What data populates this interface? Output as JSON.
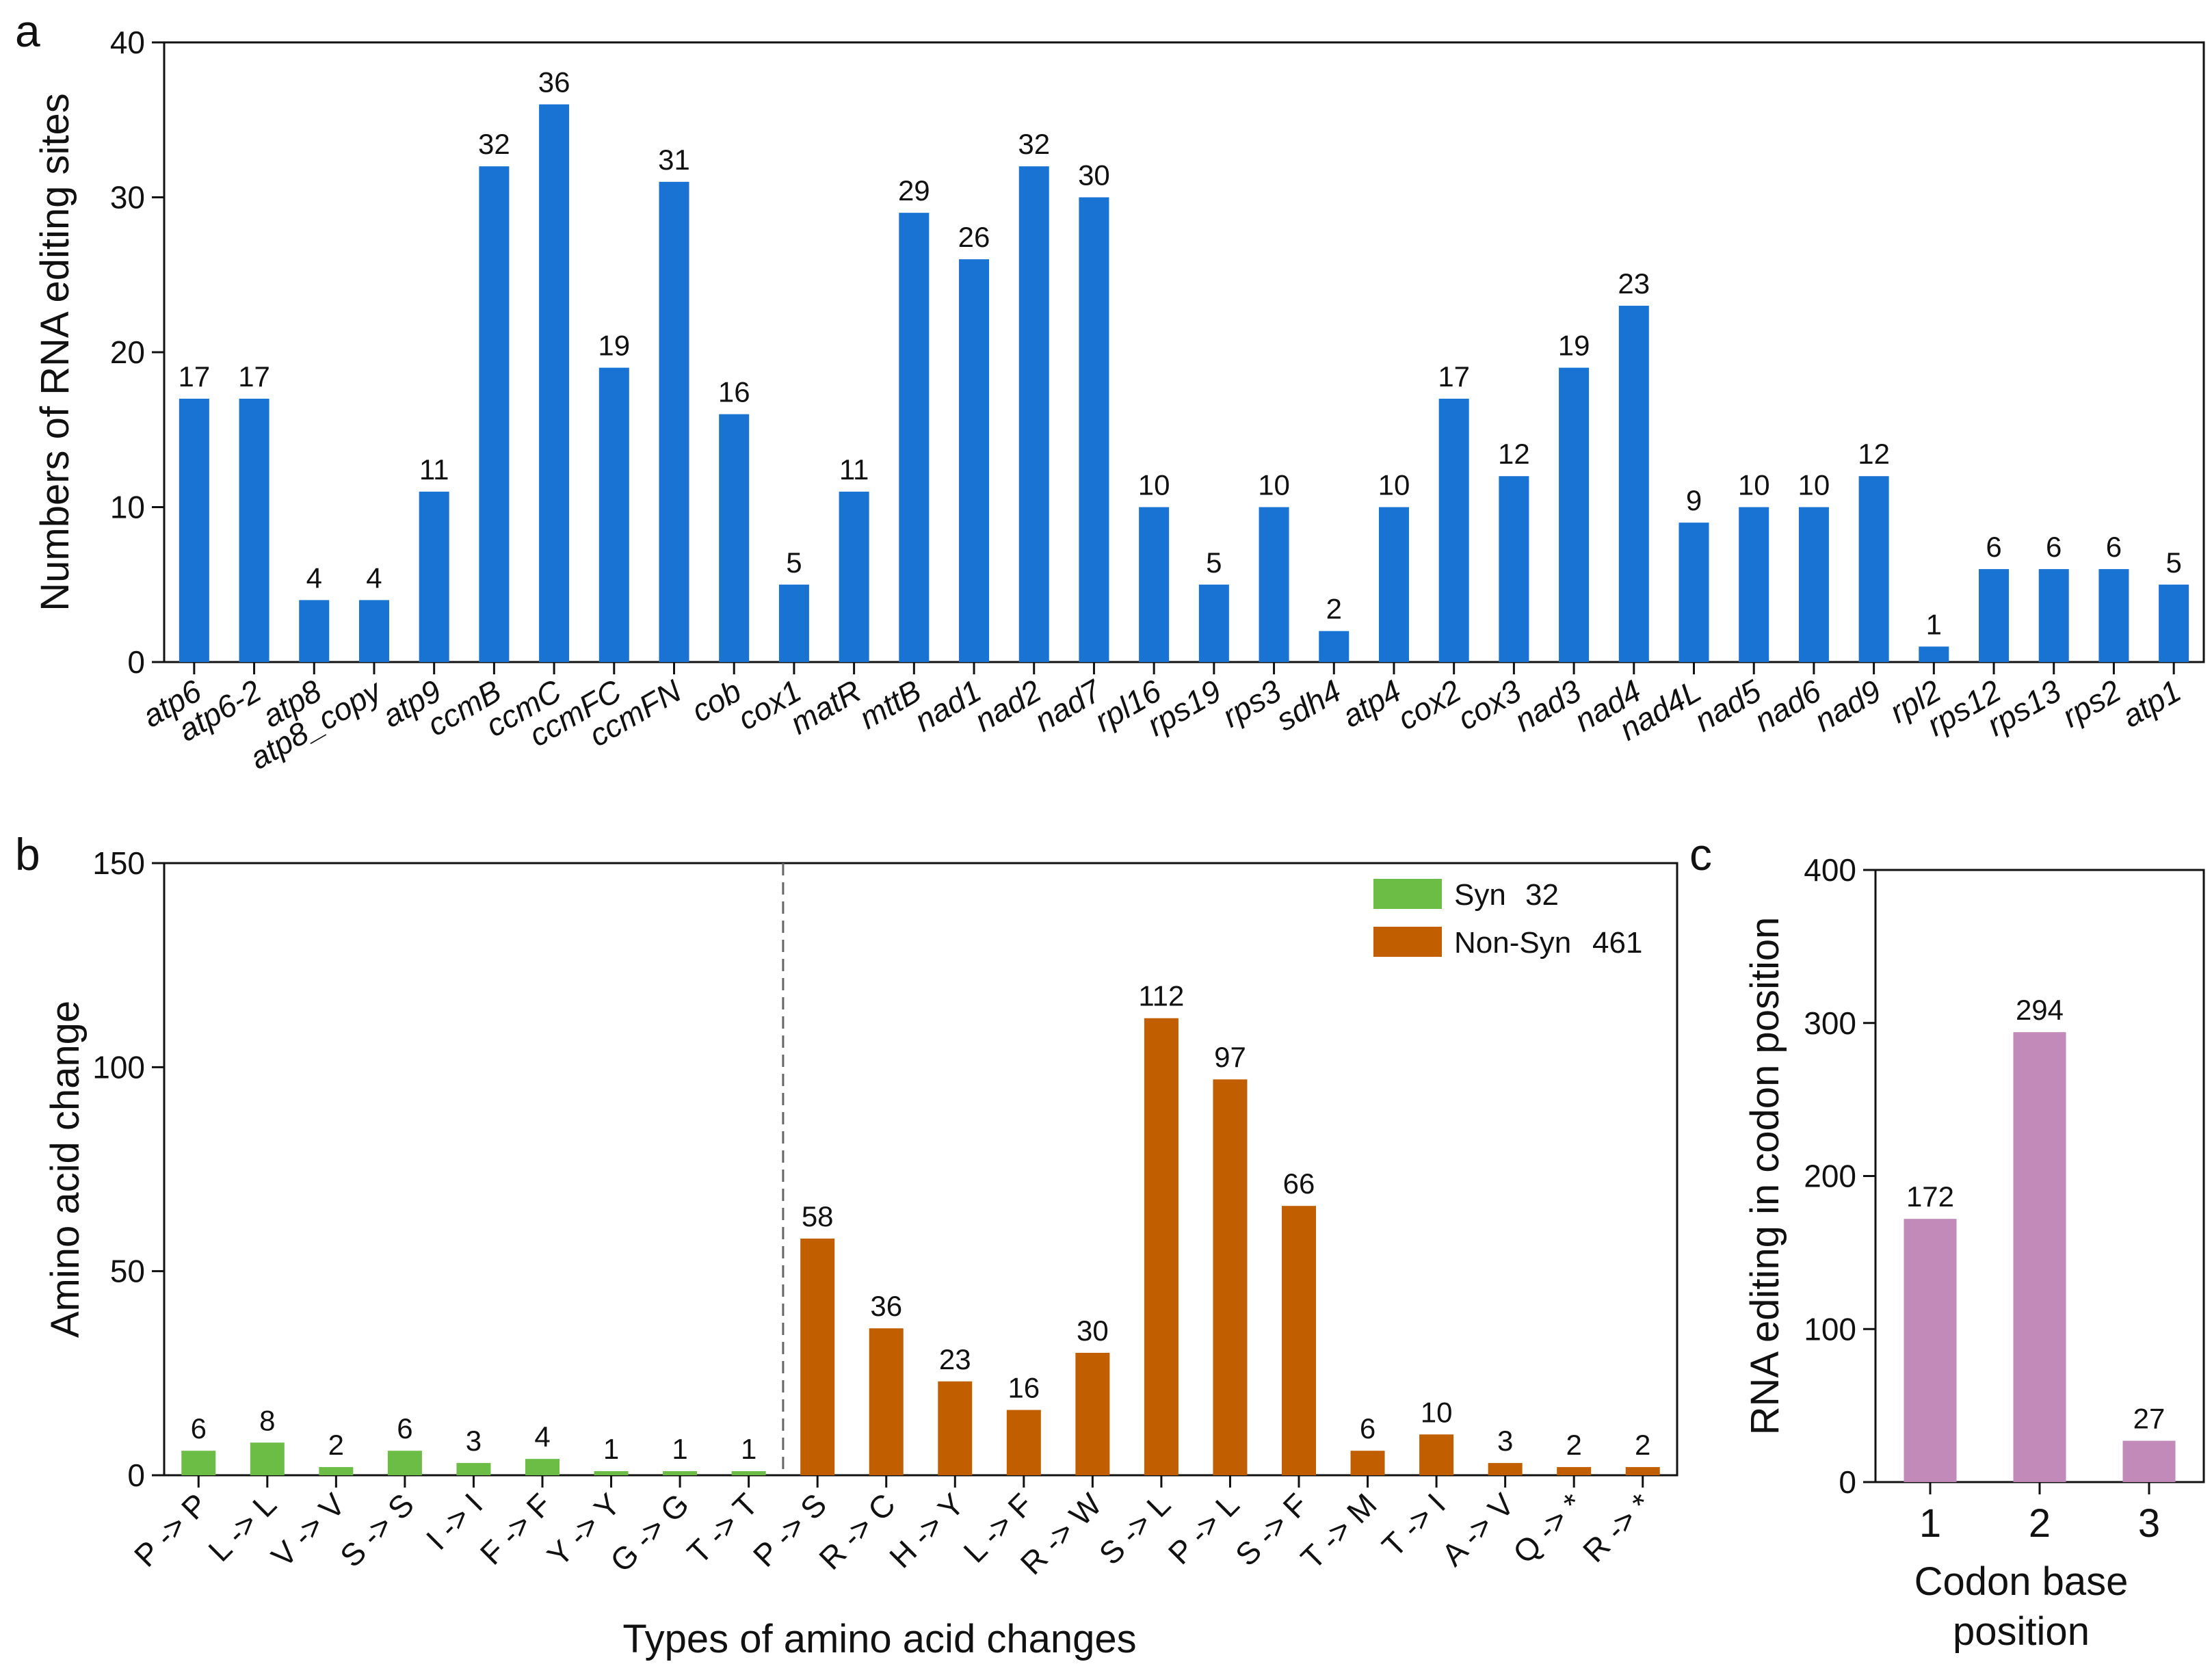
{
  "panels": {
    "a": "a",
    "b": "b",
    "c": "c"
  },
  "colors": {
    "blue": "#1873d3",
    "green": "#6bbd45",
    "orange": "#c15e00",
    "purple": "#c28ab8",
    "axis": "#111111"
  },
  "chart_data": [
    {
      "panel": "a",
      "type": "bar",
      "title": "",
      "xlabel": "",
      "ylabel": "Numbers of RNA editing sites",
      "ylim": [
        0,
        40
      ],
      "yticks": [
        0,
        10,
        20,
        30,
        40
      ],
      "categories": [
        "atp6",
        "atp6-2",
        "atp8",
        "atp8_copy",
        "atp9",
        "ccmB",
        "ccmC",
        "ccmFC",
        "ccmFN",
        "cob",
        "cox1",
        "matR",
        "mttB",
        "nad1",
        "nad2",
        "nad7",
        "rpl16",
        "rps19",
        "rps3",
        "sdh4",
        "atp4",
        "cox2",
        "cox3",
        "nad3",
        "nad4",
        "nad4L",
        "nad5",
        "nad6",
        "nad9",
        "rpl2",
        "rps12",
        "rps13",
        "rps2",
        "atp1"
      ],
      "values": [
        17,
        17,
        4,
        4,
        11,
        32,
        36,
        19,
        31,
        16,
        5,
        11,
        29,
        26,
        32,
        30,
        10,
        5,
        10,
        2,
        10,
        17,
        12,
        19,
        23,
        9,
        10,
        10,
        12,
        1,
        6,
        6,
        6,
        5
      ],
      "grid": false
    },
    {
      "panel": "b",
      "type": "bar",
      "title": "",
      "xlabel": "Types of amino acid changes",
      "ylabel": "Amino acid change",
      "ylim": [
        0,
        150
      ],
      "yticks": [
        0,
        50,
        100,
        150
      ],
      "categories": [
        "P -> P",
        "L -> L",
        "V -> V",
        "S -> S",
        "I -> I",
        "F -> F",
        "Y -> Y",
        "G -> G",
        "T -> T",
        "P -> S",
        "R -> C",
        "H -> Y",
        "L -> F",
        "R -> W",
        "S -> L",
        "P -> L",
        "S -> F",
        "T -> M",
        "T -> I",
        "A -> V",
        "Q -> *",
        "R -> *"
      ],
      "series": [
        {
          "name": "Syn",
          "total": "32",
          "values": [
            6,
            8,
            2,
            6,
            3,
            4,
            1,
            1,
            1,
            null,
            null,
            null,
            null,
            null,
            null,
            null,
            null,
            null,
            null,
            null,
            null,
            null
          ]
        },
        {
          "name": "Non-Syn",
          "total": "461",
          "values": [
            null,
            null,
            null,
            null,
            null,
            null,
            null,
            null,
            null,
            58,
            36,
            23,
            16,
            30,
            112,
            97,
            66,
            6,
            10,
            3,
            2,
            2
          ]
        }
      ],
      "legend": "top-right",
      "divider_after_category": "T -> T",
      "grid": false
    },
    {
      "panel": "c",
      "type": "bar",
      "title": "",
      "xlabel": "Codon base position",
      "ylabel": "RNA editing in codon position",
      "ylim": [
        0,
        400
      ],
      "yticks": [
        0,
        100,
        200,
        300,
        400
      ],
      "categories": [
        "1",
        "2",
        "3"
      ],
      "values": [
        172,
        294,
        27
      ],
      "grid": false
    }
  ]
}
